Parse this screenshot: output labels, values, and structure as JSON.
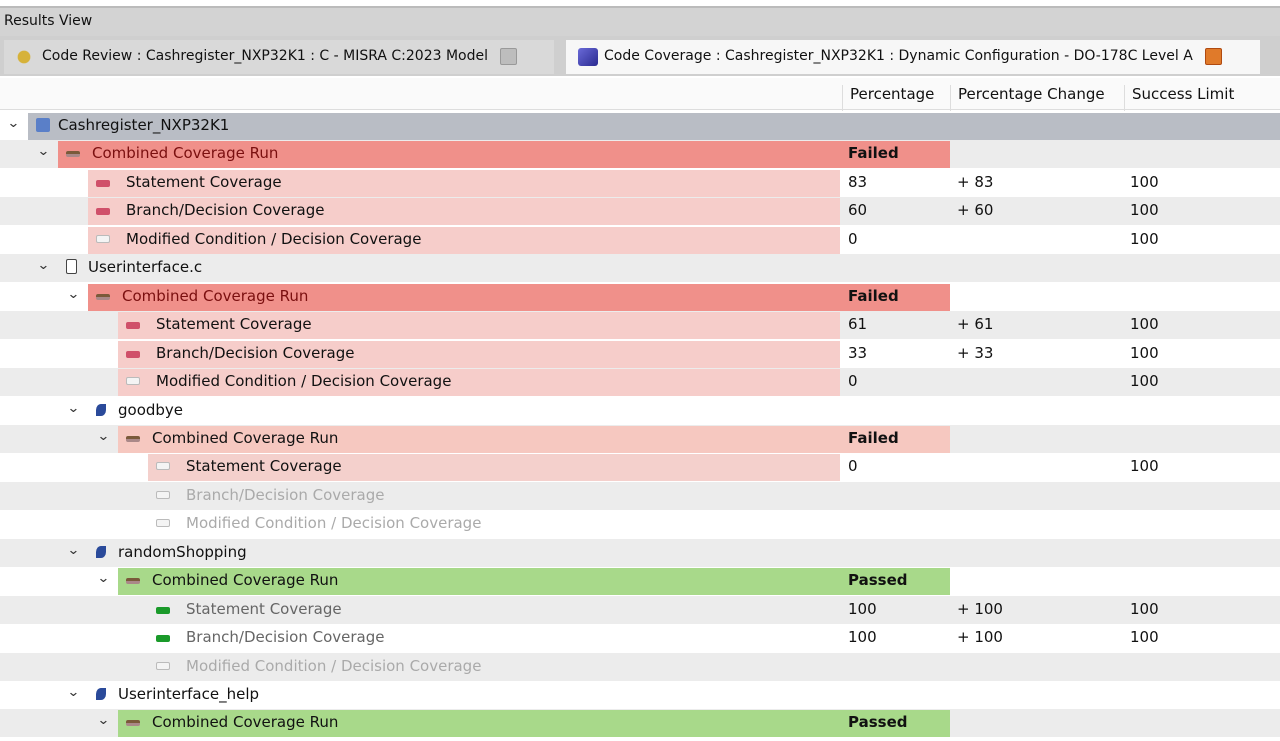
{
  "view_title": "Results View",
  "tabs": [
    {
      "label": "Code Review : Cashregister_NXP32K1 : C - MISRA C:2023 Model",
      "icon": "code-review-icon",
      "active": false
    },
    {
      "label": "Code Coverage : Cashregister_NXP32K1 : Dynamic Configuration - DO-178C Level A",
      "icon": "code-coverage-icon",
      "active": true
    }
  ],
  "columns": {
    "percentage": "Percentage",
    "change": "Percentage Change",
    "limit": "Success Limit"
  },
  "colors": {
    "failed_run": "#f0908a",
    "failed_metric": "#f6cdca",
    "passed_run": "#a8d98a",
    "passed_icon": "#1a9a2a",
    "failed_icon": "#d0506a",
    "header": "#b9bdc5"
  },
  "rows": [
    {
      "depth": 0,
      "label": "Cashregister_NXP32K1",
      "icon": "project-icon",
      "kind": "project"
    },
    {
      "depth": 1,
      "label": "Combined Coverage Run",
      "icon": "coverage-run-icon",
      "kind": "run",
      "status": "failed",
      "percentage": "Failed"
    },
    {
      "depth": 2,
      "label": "Statement Coverage",
      "icon": "metric-icon",
      "kind": "metric",
      "status": "failed",
      "percentage": "83",
      "change": "+ 83",
      "limit": "100"
    },
    {
      "depth": 2,
      "label": "Branch/Decision Coverage",
      "icon": "metric-icon",
      "kind": "metric",
      "status": "failed",
      "percentage": "60",
      "change": "+ 60",
      "limit": "100"
    },
    {
      "depth": 2,
      "label": "Modified Condition / Decision Coverage",
      "icon": "metric-empty-icon",
      "kind": "metric",
      "status": "failed",
      "percentage": "0",
      "limit": "100"
    },
    {
      "depth": 1,
      "label": "Userinterface.c",
      "icon": "file-icon",
      "kind": "file"
    },
    {
      "depth": 2,
      "label": "Combined Coverage Run",
      "icon": "coverage-run-icon",
      "kind": "run",
      "status": "failed",
      "percentage": "Failed"
    },
    {
      "depth": 3,
      "label": "Statement Coverage",
      "icon": "metric-icon",
      "kind": "metric",
      "status": "failed",
      "percentage": "61",
      "change": "+ 61",
      "limit": "100"
    },
    {
      "depth": 3,
      "label": "Branch/Decision Coverage",
      "icon": "metric-icon",
      "kind": "metric",
      "status": "failed",
      "percentage": "33",
      "change": "+ 33",
      "limit": "100"
    },
    {
      "depth": 3,
      "label": "Modified Condition / Decision Coverage",
      "icon": "metric-empty-icon",
      "kind": "metric",
      "status": "failed",
      "percentage": "0",
      "limit": "100"
    },
    {
      "depth": 2,
      "label": "goodbye",
      "icon": "function-icon",
      "kind": "function"
    },
    {
      "depth": 3,
      "label": "Combined Coverage Run",
      "icon": "coverage-run-icon",
      "kind": "run",
      "status": "failed-light",
      "percentage": "Failed"
    },
    {
      "depth": 4,
      "label": "Statement Coverage",
      "icon": "metric-empty-icon",
      "kind": "metric",
      "status": "failed-light",
      "percentage": "0",
      "limit": "100"
    },
    {
      "depth": 4,
      "label": "Branch/Decision Coverage",
      "icon": "metric-empty-icon",
      "kind": "metric",
      "status": "disabled"
    },
    {
      "depth": 4,
      "label": "Modified Condition / Decision Coverage",
      "icon": "metric-empty-icon",
      "kind": "metric",
      "status": "disabled"
    },
    {
      "depth": 2,
      "label": "randomShopping",
      "icon": "function-icon",
      "kind": "function"
    },
    {
      "depth": 3,
      "label": "Combined Coverage Run",
      "icon": "coverage-run-icon",
      "kind": "run",
      "status": "passed",
      "percentage": "Passed"
    },
    {
      "depth": 4,
      "label": "Statement Coverage",
      "icon": "metric-icon",
      "kind": "metric",
      "status": "passed-metric",
      "percentage": "100",
      "change": "+ 100",
      "limit": "100"
    },
    {
      "depth": 4,
      "label": "Branch/Decision Coverage",
      "icon": "metric-icon",
      "kind": "metric",
      "status": "passed-metric",
      "percentage": "100",
      "change": "+ 100",
      "limit": "100"
    },
    {
      "depth": 4,
      "label": "Modified Condition / Decision Coverage",
      "icon": "metric-empty-icon",
      "kind": "metric",
      "status": "disabled"
    },
    {
      "depth": 2,
      "label": "Userinterface_help",
      "icon": "function-icon",
      "kind": "function"
    },
    {
      "depth": 3,
      "label": "Combined Coverage Run",
      "icon": "coverage-run-icon",
      "kind": "run",
      "status": "passed",
      "percentage": "Passed"
    }
  ]
}
